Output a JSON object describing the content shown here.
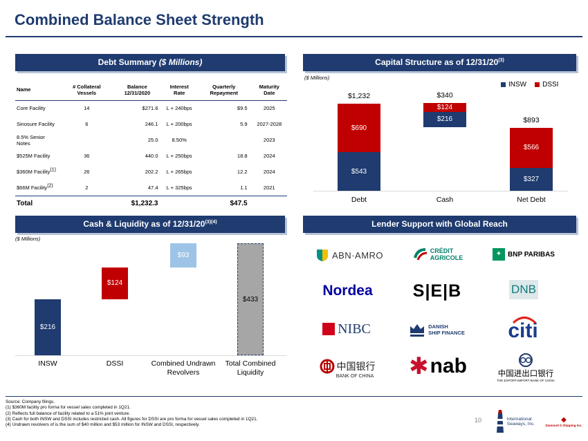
{
  "title": "Combined Balance Sheet Strength",
  "debt": {
    "header": "Debt Summary",
    "header_units": "($ Millions)",
    "columns": [
      "Name",
      "# Collateral Vessels",
      "Balance 12/31/2020",
      "Interest Rate",
      "Quarterly Repayment",
      "Maturity Date"
    ],
    "rows": [
      {
        "name": "Core Facility",
        "fn": "",
        "vessels": "14",
        "balance": "$271.6",
        "rate": "L + 240bps",
        "repay": "$9.5",
        "maturity": "2025"
      },
      {
        "name": "Sinosure Facility",
        "fn": "",
        "vessels": "6",
        "balance": "246.1",
        "rate": "L + 200bps",
        "repay": "5.9",
        "maturity": "2027-2028"
      },
      {
        "name": "8.5% Senior Notes",
        "fn": "",
        "vessels": "",
        "balance": "25.0",
        "rate": "8.50%",
        "repay": "",
        "maturity": "2023"
      },
      {
        "name": "$525M Facility",
        "fn": "",
        "vessels": "36",
        "balance": "440.0",
        "rate": "L + 250bps",
        "repay": "18.8",
        "maturity": "2024"
      },
      {
        "name": "$360M Facility",
        "fn": "(1)",
        "vessels": "26",
        "balance": "202.2",
        "rate": "L + 265bps",
        "repay": "12.2",
        "maturity": "2024"
      },
      {
        "name": "$66M Facility",
        "fn": "(2)",
        "vessels": "2",
        "balance": "47.4",
        "rate": "L + 325bps",
        "repay": "1.1",
        "maturity": "2021"
      }
    ],
    "total": {
      "label": "Total",
      "balance": "$1,232.3",
      "repay": "$47.5"
    }
  },
  "capital": {
    "header": "Capital Structure as of 12/31/20",
    "header_fn": "(3)",
    "units": "($ Millions)",
    "legend": [
      "INSW",
      "DSSI"
    ],
    "colors": {
      "insw": "#1f3b6f",
      "dssi": "#c00000"
    }
  },
  "cash": {
    "header": "Cash & Liquidity as of 12/31/20",
    "header_fn": "(3)(4)",
    "units": "($ Millions)",
    "colors": {
      "insw": "#1f3b6f",
      "dssi": "#c00000",
      "undrawn": "#9dc3e6",
      "total": "#a6a6a6"
    }
  },
  "chart_data": [
    {
      "type": "bar",
      "title": "Capital Structure as of 12/31/20",
      "stacked": true,
      "categories": [
        "Debt",
        "Cash",
        "Net Debt"
      ],
      "series": [
        {
          "name": "INSW",
          "values": [
            543,
            216,
            327
          ],
          "labels": [
            "$543",
            "$216",
            "$327"
          ]
        },
        {
          "name": "DSSI",
          "values": [
            690,
            124,
            566
          ],
          "labels": [
            "$690",
            "$124",
            "$566"
          ]
        }
      ],
      "totals": [
        "$1,232",
        "$340",
        "$893"
      ],
      "ylabel": "($ Millions)",
      "ylim": [
        0,
        1400
      ]
    },
    {
      "type": "bar",
      "title": "Cash & Liquidity as of 12/31/20",
      "waterfall": true,
      "categories": [
        "INSW",
        "DSSI",
        "Combined Undrawn Revolvers",
        "Total Combined Liquidity"
      ],
      "values": [
        216,
        124,
        93,
        433
      ],
      "labels": [
        "$216",
        "$124",
        "$93",
        "$433"
      ],
      "ylabel": "($ Millions)",
      "ylim": [
        0,
        450
      ]
    }
  ],
  "lenders": {
    "header": "Lender Support with Global Reach",
    "logos": {
      "abn": "ABN·AMRO",
      "ca1": "CRÉDIT",
      "ca2": "AGRICOLE",
      "bnp": "BNP PARIBAS",
      "nordea": "Nordea",
      "seb": "S|E|B",
      "dnb": "DNB",
      "nibc": "NIBC",
      "dsf1": "DANISH",
      "dsf2": "SHIP FINANCE",
      "citi": "citi",
      "boc_cn": "中国银行",
      "boc_en": "BANK OF CHINA",
      "nab": "nab",
      "exim_cn": "中国进出口银行",
      "exim_en": "THE EXPORT-IMPORT BANK OF CHINA"
    }
  },
  "footnotes": [
    "Source: Company filings.",
    "(1)   $360M facility pro forma for vessel sales completed in 1Q21.",
    "(2)   Reflects full balance of facility related to a 51% joint venture.",
    "(3)   Cash for both INSW and DSSI includes restricted cash. All figures for DSSI are pro forma for vessel sales completed in 1Q21.",
    "(4)   Undrawn revolvers of is the sum of $40 million and $53 million for INSW and DSSI, respectively."
  ],
  "page_number": "10",
  "brand": {
    "insw1": "International",
    "insw2": "Seaways, Inc.",
    "dssi": "Diamond S Shipping Inc."
  }
}
